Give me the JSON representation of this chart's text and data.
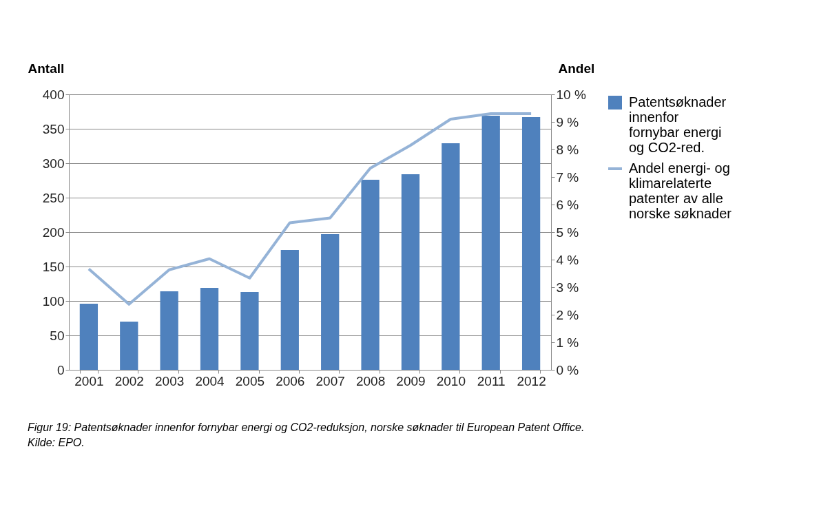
{
  "chart_data": {
    "type": "bar",
    "categories": [
      "2001",
      "2002",
      "2003",
      "2004",
      "2005",
      "2006",
      "2007",
      "2008",
      "2009",
      "2010",
      "2011",
      "2012"
    ],
    "ylabel": "Antall",
    "y2label": "Andel",
    "ylim": [
      0,
      400
    ],
    "yticks": [
      0,
      50,
      100,
      150,
      200,
      250,
      300,
      350,
      400
    ],
    "y2lim": [
      0,
      10
    ],
    "y2ticks": [
      {
        "value": 0,
        "label": "0 %"
      },
      {
        "value": 1,
        "label": "1 %"
      },
      {
        "value": 2,
        "label": "2 %"
      },
      {
        "value": 3,
        "label": "3 %"
      },
      {
        "value": 4,
        "label": "4 %"
      },
      {
        "value": 5,
        "label": "5 %"
      },
      {
        "value": 6,
        "label": "6 %"
      },
      {
        "value": 7,
        "label": "7 %"
      },
      {
        "value": 8,
        "label": "8 %"
      },
      {
        "value": 9,
        "label": "9 %"
      },
      {
        "value": 10,
        "label": "10 %"
      }
    ],
    "grid": "y",
    "legend": "right",
    "annotations": [
      "Figur 19: Patentsøknader innenfor fornybar energi og CO2-reduksjon, norske søknader til European Patent Office.",
      "Kilde: EPO."
    ],
    "series": [
      {
        "name": "Patentsøknader innenfor fornybar energi og CO2-red.",
        "color": "#4f81bd",
        "values": [
          96,
          70,
          114,
          119,
          113,
          174,
          197,
          276,
          284,
          329,
          369,
          367
        ]
      },
      {
        "name": "Andel energi- og klimarelaterte patenter av alle norske søknader",
        "type": "line",
        "axis": "y2",
        "color": "#95b3d7",
        "values": [
          3.66,
          2.38,
          3.63,
          4.03,
          3.33,
          5.34,
          5.51,
          7.32,
          8.15,
          9.1,
          9.3,
          9.3
        ]
      }
    ]
  }
}
